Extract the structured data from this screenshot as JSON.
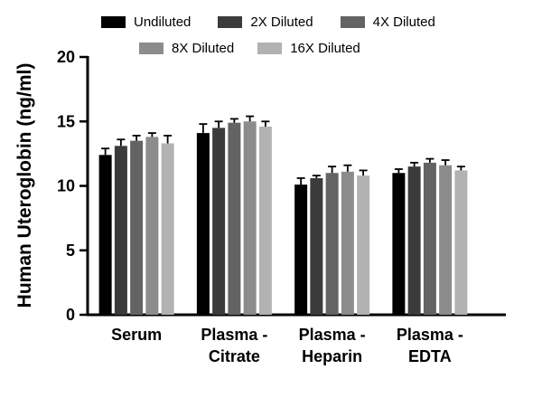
{
  "figure": {
    "background": "#ffffff"
  },
  "chart_data": {
    "type": "bar",
    "title": "",
    "ylabel": "Human Uteroglobin (ng/ml)",
    "xlabel": "",
    "ylim": [
      0,
      20
    ],
    "yticks": [
      0,
      5,
      10,
      15,
      20
    ],
    "grid": false,
    "legend_position": "top",
    "error_bars": "upper, SD",
    "error_bar_color": "#000000",
    "axis_color": "#000000",
    "colors": [
      "#000000",
      "#3b3b3b",
      "#636363",
      "#8c8c8c",
      "#b2b2b2"
    ],
    "categories": [
      "Serum",
      "Plasma - Citrate",
      "Plasma - Heparin",
      "Plasma - EDTA"
    ],
    "category_label_lines": [
      [
        "Serum"
      ],
      [
        "Plasma -",
        "Citrate"
      ],
      [
        "Plasma -",
        "Heparin"
      ],
      [
        "Plasma -",
        "EDTA"
      ]
    ],
    "series": [
      {
        "name": "Undiluted",
        "values": [
          12.4,
          14.1,
          10.1,
          11.0
        ],
        "errors": [
          0.5,
          0.7,
          0.5,
          0.3
        ]
      },
      {
        "name": "2X Diluted",
        "values": [
          13.1,
          14.5,
          10.6,
          11.5
        ],
        "errors": [
          0.5,
          0.5,
          0.2,
          0.3
        ]
      },
      {
        "name": "4X Diluted",
        "values": [
          13.5,
          14.9,
          11.0,
          11.8
        ],
        "errors": [
          0.4,
          0.3,
          0.5,
          0.3
        ]
      },
      {
        "name": "8X Diluted",
        "values": [
          13.8,
          15.0,
          11.1,
          11.6
        ],
        "errors": [
          0.3,
          0.4,
          0.5,
          0.4
        ]
      },
      {
        "name": "16X Diluted",
        "values": [
          13.3,
          14.6,
          10.8,
          11.2
        ],
        "errors": [
          0.6,
          0.4,
          0.4,
          0.3
        ]
      }
    ]
  }
}
